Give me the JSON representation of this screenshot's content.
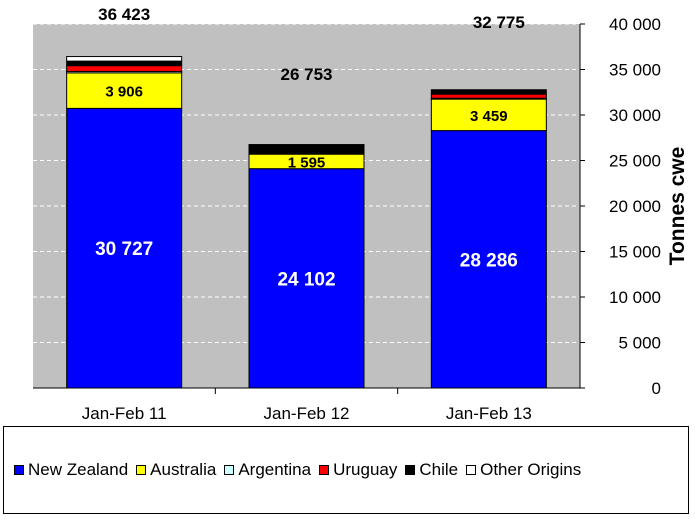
{
  "chart_data": {
    "type": "bar",
    "stacked": true,
    "categories": [
      "Jan-Feb 11",
      "Jan-Feb 12",
      "Jan-Feb 13"
    ],
    "ylabel": "Tonnes cwe",
    "ylim": [
      0,
      40000
    ],
    "yticks": [
      0,
      5000,
      10000,
      15000,
      20000,
      25000,
      30000,
      35000,
      40000
    ],
    "ytick_labels": [
      "0",
      "5 000",
      "10 000",
      "15 000",
      "20 000",
      "25 000",
      "30 000",
      "35 000",
      "40 000"
    ],
    "y_axis_position": "right",
    "grid": true,
    "legend_position": "bottom",
    "totals": [
      36423,
      26753,
      32775
    ],
    "total_labels": [
      "36 423",
      "26 753",
      "32 775"
    ],
    "series": [
      {
        "name": "New Zealand",
        "color": "#0000ff",
        "values": [
          30727,
          24102,
          28286
        ],
        "labels": [
          "30 727",
          "24 102",
          "28 286"
        ],
        "label_color": "#ffffff"
      },
      {
        "name": "Australia",
        "color": "#ffff00",
        "values": [
          3906,
          1595,
          3459
        ],
        "labels": [
          "3 906",
          "1 595",
          "3 459"
        ],
        "label_color": "#000000"
      },
      {
        "name": "Argentina",
        "color": "#ccffff",
        "values": [
          150,
          0,
          100
        ],
        "labels": [
          "",
          "",
          ""
        ],
        "label_color": "#000000"
      },
      {
        "name": "Uruguay",
        "color": "#ff0000",
        "values": [
          640,
          100,
          450
        ],
        "labels": [
          "",
          "",
          ""
        ],
        "label_color": "#000000"
      },
      {
        "name": "Chile",
        "color": "#000000",
        "values": [
          500,
          956,
          480
        ],
        "labels": [
          "",
          "",
          ""
        ],
        "label_color": "#000000"
      },
      {
        "name": "Other Origins",
        "color": "#ffffff",
        "values": [
          500,
          0,
          0
        ],
        "labels": [
          "",
          "",
          ""
        ],
        "label_color": "#000000"
      }
    ]
  }
}
